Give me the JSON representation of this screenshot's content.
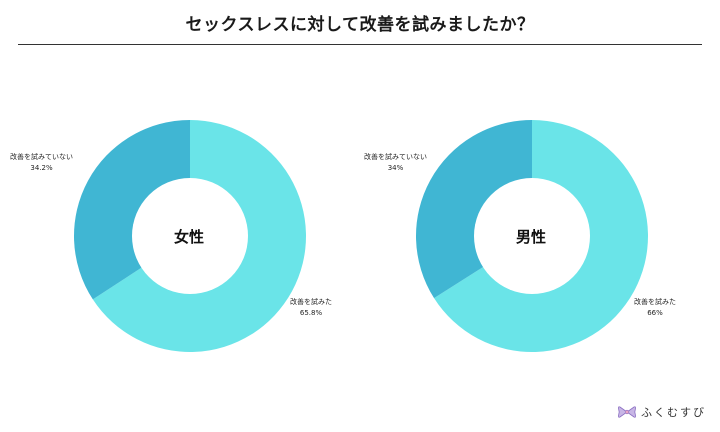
{
  "header": {
    "title": "セックスレスに対して改善を試みましたか？"
  },
  "colors": {
    "tried": "#6ae4e8",
    "not_tried": "#40b6d3",
    "hole": "#ffffff"
  },
  "brand": {
    "name": "ふくむすび",
    "icon": "bow-icon"
  },
  "chart_data": [
    {
      "type": "pie",
      "center_label": "女性",
      "slices": [
        {
          "label": "改善を試みた",
          "value_label": "65.8%",
          "value": 65.8
        },
        {
          "label": "改善を試みていない",
          "value_label": "34.2%",
          "value": 34.2
        }
      ]
    },
    {
      "type": "pie",
      "center_label": "男性",
      "slices": [
        {
          "label": "改善を試みた",
          "value_label": "66%",
          "value": 66
        },
        {
          "label": "改善を試みていない",
          "value_label": "34%",
          "value": 34
        }
      ]
    }
  ]
}
